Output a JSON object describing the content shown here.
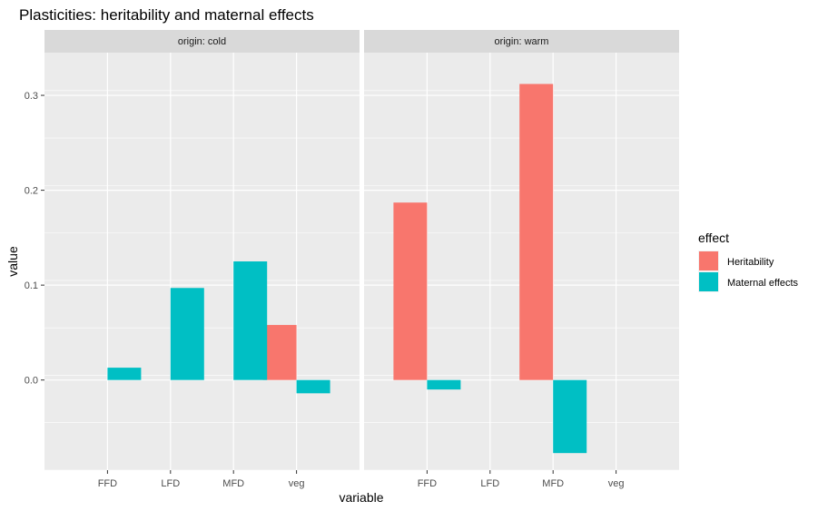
{
  "chart_data": {
    "type": "bar",
    "title": "Plasticities: heritability and maternal effects",
    "xlabel": "variable",
    "ylabel": "value",
    "categories": [
      "FFD",
      "LFD",
      "MFD",
      "veg"
    ],
    "ylim": [
      -0.095,
      0.345
    ],
    "yticks": [
      0.0,
      0.1,
      0.2,
      0.3
    ],
    "ytick_labels": [
      "0.0",
      "0.1",
      "0.2",
      "0.3"
    ],
    "grid": true,
    "legend": {
      "title": "effect",
      "position": "right",
      "entries": [
        {
          "name": "Heritability",
          "color": "#F8766D"
        },
        {
          "name": "Maternal effects",
          "color": "#00BFC4"
        }
      ]
    },
    "facets": [
      {
        "label": "origin: cold",
        "series": [
          {
            "name": "Heritability",
            "color": "#F8766D",
            "values": [
              null,
              null,
              null,
              0.058
            ]
          },
          {
            "name": "Maternal effects",
            "color": "#00BFC4",
            "values": [
              0.013,
              0.097,
              0.125,
              -0.014
            ]
          }
        ]
      },
      {
        "label": "origin: warm",
        "series": [
          {
            "name": "Heritability",
            "color": "#F8766D",
            "values": [
              0.187,
              null,
              0.312,
              null
            ]
          },
          {
            "name": "Maternal effects",
            "color": "#00BFC4",
            "values": [
              -0.01,
              null,
              -0.077,
              null
            ]
          }
        ]
      }
    ]
  }
}
